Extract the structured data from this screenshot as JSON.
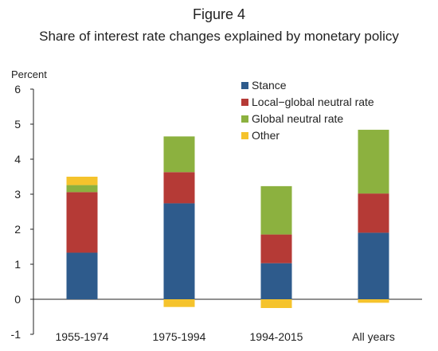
{
  "figure": {
    "label": "Figure 4",
    "subtitle": "Share of interest rate changes explained by monetary policy"
  },
  "chart_data": {
    "type": "bar",
    "stacked": true,
    "ylabel": "Percent",
    "ylim": [
      -1,
      6
    ],
    "yticks": [
      -1,
      0,
      1,
      2,
      3,
      4,
      5,
      6
    ],
    "categories": [
      "1955-1974",
      "1975-1994",
      "1994-2015",
      "All years"
    ],
    "series": [
      {
        "name": "Stance",
        "color": "#2e5b8c",
        "values": [
          1.33,
          2.74,
          1.03,
          1.9
        ]
      },
      {
        "name": "Local−global neutral rate",
        "color": "#b53a36",
        "values": [
          1.73,
          0.89,
          0.82,
          1.12
        ]
      },
      {
        "name": "Global neutral rate",
        "color": "#8cb13f",
        "values": [
          0.2,
          1.02,
          1.38,
          1.82
        ]
      },
      {
        "name": "Other",
        "color": "#f5c32c",
        "values": [
          0.24,
          -0.22,
          -0.25,
          -0.1
        ]
      }
    ],
    "legend_position": "top-right",
    "grid": false
  }
}
